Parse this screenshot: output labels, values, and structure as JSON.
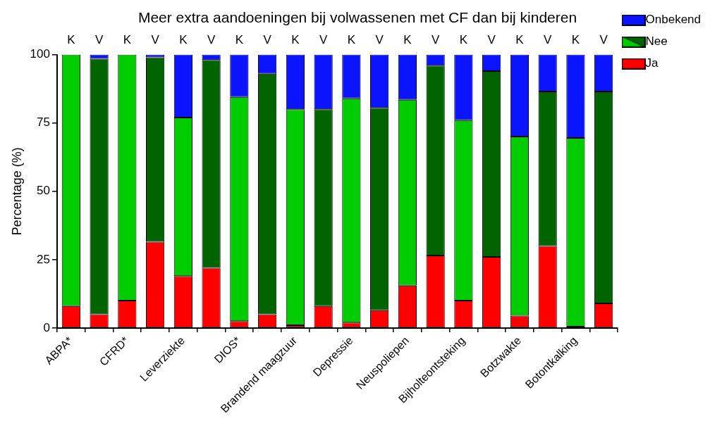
{
  "chart_data": {
    "type": "bar",
    "title": "Meer extra aandoeningen bij volwassenen met CF dan bij kinderen",
    "y_label": "Percentage (%)",
    "categories": [
      "ABPA*",
      null,
      "CFRD*",
      null,
      "Leverziekte",
      null,
      "DIOS*",
      null,
      "Brandend maagzuur",
      null,
      "Depressie",
      null,
      "Neuspoliepen",
      null,
      "Bijholteontsteking",
      null,
      "Botzwakte",
      null,
      "Botontkalking",
      null
    ],
    "group_labels": [
      "K",
      "V",
      "K",
      "V",
      "K",
      "V",
      "K",
      "V",
      "K",
      "V",
      "K",
      "V",
      "K",
      "V",
      "K",
      "V",
      "K",
      "V",
      "K",
      "V"
    ],
    "series": [
      {
        "name": "Ja",
        "color": "#ff0000",
        "values": [
          8,
          5,
          10,
          31.5,
          19,
          22,
          2.5,
          5,
          1,
          8,
          2,
          6.5,
          15.5,
          26.5,
          10,
          26,
          4.5,
          30,
          0.5,
          9
        ]
      },
      {
        "name": "Nee",
        "color": "#00cc00",
        "colors": [
          "#00cc00",
          "#006400",
          "#00cc00",
          "#006400",
          "#00cc00",
          "#006400",
          "#00cc00",
          "#006400",
          "#00cc00",
          "#006400",
          "#00cc00",
          "#006400",
          "#00cc00",
          "#006400",
          "#00cc00",
          "#006400",
          "#00cc00",
          "#006400",
          "#00cc00",
          "#006400"
        ],
        "values": [
          92,
          93.5,
          90,
          67.5,
          58,
          76,
          82,
          88,
          79,
          72,
          82,
          74,
          68,
          69.5,
          66,
          68,
          65.5,
          56.5,
          69,
          77.5
        ]
      },
      {
        "name": "Onbekend",
        "color": "#0a14ff",
        "values": [
          0,
          1.5,
          0,
          1,
          23,
          2,
          15.5,
          7,
          20,
          20,
          16,
          19.5,
          16.5,
          4,
          24,
          6,
          30,
          13.5,
          30.5,
          13.5
        ]
      }
    ],
    "stacked": true,
    "ylim": [
      0,
      100
    ],
    "yticks": [
      0,
      25,
      50,
      75,
      100
    ],
    "grid": false,
    "legend": "upper right"
  }
}
